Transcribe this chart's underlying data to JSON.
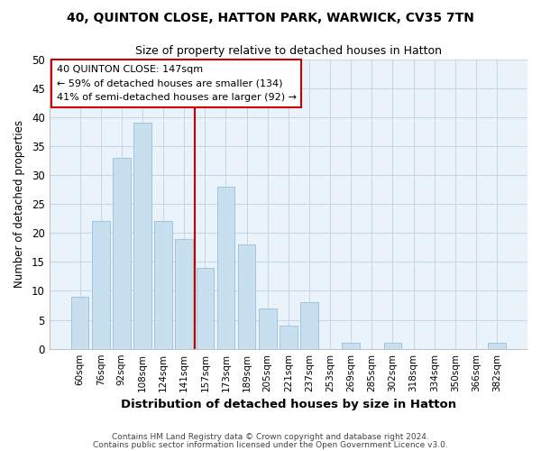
{
  "title": "40, QUINTON CLOSE, HATTON PARK, WARWICK, CV35 7TN",
  "subtitle": "Size of property relative to detached houses in Hatton",
  "xlabel": "Distribution of detached houses by size in Hatton",
  "ylabel": "Number of detached properties",
  "bar_color": "#c8dff0",
  "bar_edge_color": "#a0c4de",
  "bins": [
    "60sqm",
    "76sqm",
    "92sqm",
    "108sqm",
    "124sqm",
    "141sqm",
    "157sqm",
    "173sqm",
    "189sqm",
    "205sqm",
    "221sqm",
    "237sqm",
    "253sqm",
    "269sqm",
    "285sqm",
    "302sqm",
    "318sqm",
    "334sqm",
    "350sqm",
    "366sqm",
    "382sqm"
  ],
  "values": [
    9,
    22,
    33,
    39,
    22,
    19,
    14,
    28,
    18,
    7,
    4,
    8,
    0,
    1,
    0,
    1,
    0,
    0,
    0,
    0,
    1
  ],
  "ylim": [
    0,
    50
  ],
  "yticks": [
    0,
    5,
    10,
    15,
    20,
    25,
    30,
    35,
    40,
    45,
    50
  ],
  "property_label": "40 QUINTON CLOSE: 147sqm",
  "annotation_line1": "← 59% of detached houses are smaller (134)",
  "annotation_line2": "41% of semi-detached houses are larger (92) →",
  "vline_color": "#cc0000",
  "box_color": "#ffffff",
  "box_edge_color": "#cc0000",
  "grid_color": "#c8d8e8",
  "background_color": "#ffffff",
  "plot_bg_color": "#eaf2fa",
  "footer1": "Contains HM Land Registry data © Crown copyright and database right 2024.",
  "footer2": "Contains public sector information licensed under the Open Government Licence v3.0."
}
